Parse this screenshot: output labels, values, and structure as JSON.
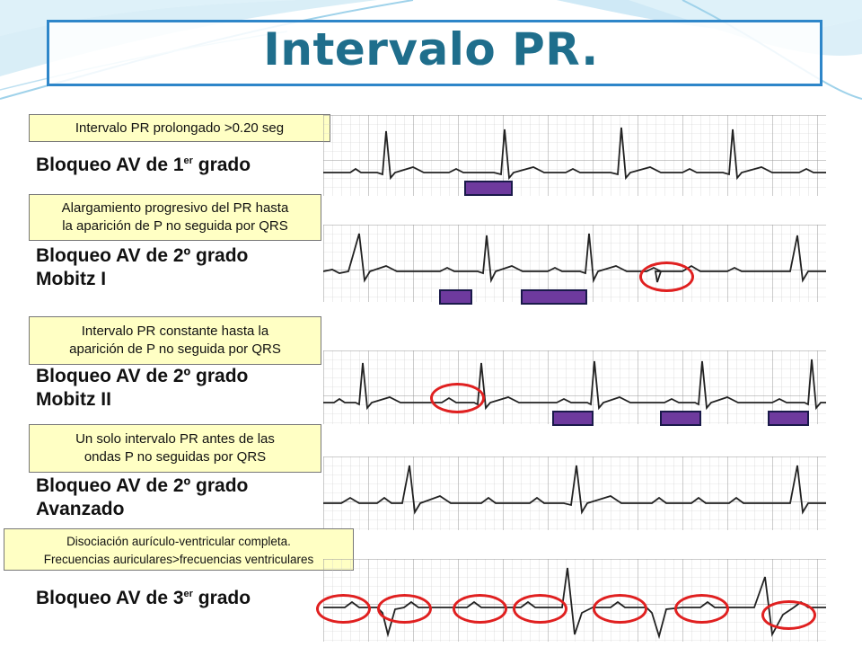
{
  "slide": {
    "title": "Intervalo PR.",
    "background_accent": "#2e86c9",
    "title_color": "#1f6e8c",
    "callout_color": "#ffffc4",
    "marker_color": "#6e3a9e",
    "circle_color": "#e02020"
  },
  "rows": [
    {
      "callout_lines": [
        "Intervalo PR prolongado >0.20 seg"
      ],
      "label_main": "Bloqueo AV de 1",
      "label_sup": "er",
      "label_after": " grado",
      "label_line2": ""
    },
    {
      "callout_lines": [
        "Alargamiento progresivo del PR hasta",
        "la aparición de P no seguida por QRS"
      ],
      "label_main": "Bloqueo AV de  2º grado",
      "label_sup": "",
      "label_after": "",
      "label_line2": "Mobitz I"
    },
    {
      "callout_lines": [
        "Intervalo PR constante hasta la",
        "aparición de P no seguida por QRS"
      ],
      "label_main": "Bloqueo AV de 2º grado",
      "label_sup": "",
      "label_after": "",
      "label_line2": "Mobitz II"
    },
    {
      "callout_lines": [
        "Un solo intervalo PR antes de las",
        "ondas P no seguidas por QRS"
      ],
      "label_main": "Bloqueo AV de 2º grado",
      "label_sup": "",
      "label_after": "",
      "label_line2": "Avanzado"
    },
    {
      "callout_lines": [
        "Disociación aurículo-ventricular completa.",
        "Frecuencias auriculares>frecuencias ventriculares"
      ],
      "label_main": "Bloqueo AV de 3",
      "label_sup": "er",
      "label_after": " grado",
      "label_line2": ""
    }
  ]
}
